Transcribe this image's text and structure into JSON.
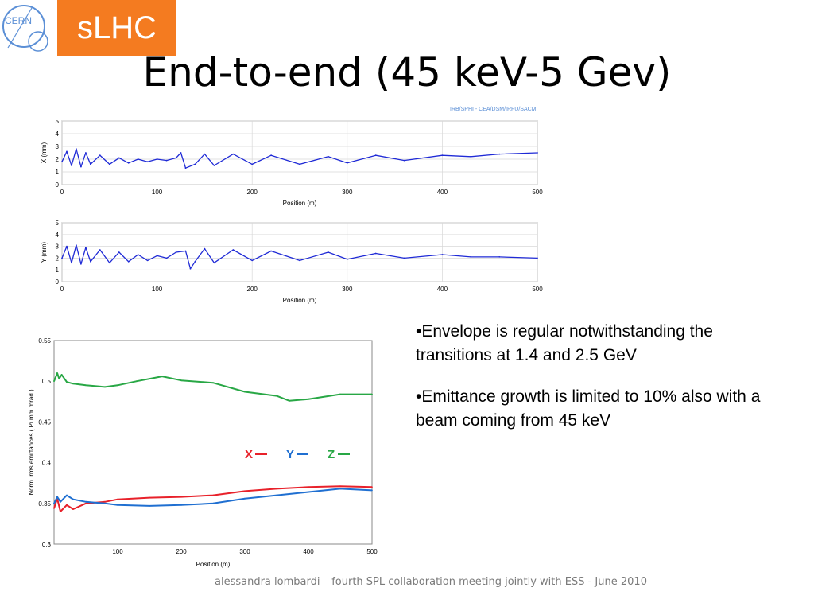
{
  "header": {
    "logo_text": "CERN",
    "project_badge": "sLHC",
    "title": "End-to-end (45 keV-5 Gev)",
    "credit": "IRB/SPHI - CEA/DSM/IRFU/SACM"
  },
  "bullets": [
    "•Envelope is regular notwithstanding the transitions at 1.4 and 2.5 GeV",
    "•Emittance growth is limited to 10% also with a beam coming from 45 keV"
  ],
  "footer": {
    "text": "alessandra lombardi – fourth SPL collaboration meeting jointly with ESS  - June 2010"
  },
  "colors": {
    "slhc_orange": "#f47b20",
    "envelope_blue": "#1f2ad6",
    "x_red": "#e8212a",
    "y_blue": "#1f6fd1",
    "z_green": "#28a745"
  },
  "chart_data": [
    {
      "type": "line",
      "xlabel": "Position (m)",
      "ylabel": "X (mm)",
      "xlim": [
        0,
        500
      ],
      "ylim": [
        0,
        5
      ],
      "xticks": [
        "0",
        "100",
        "200",
        "300",
        "400",
        "500"
      ],
      "yticks": [
        "0",
        "1",
        "2",
        "3",
        "4",
        "5"
      ],
      "grid": true,
      "series": [
        {
          "x": [
            0,
            5,
            10,
            15,
            20,
            25,
            30,
            40,
            50,
            60,
            70,
            80,
            90,
            100,
            110,
            120,
            125,
            130,
            140,
            150,
            160,
            180,
            200,
            220,
            250,
            280,
            300,
            330,
            360,
            400,
            430,
            460,
            500
          ],
          "y": [
            1.8,
            2.6,
            1.5,
            2.8,
            1.4,
            2.5,
            1.6,
            2.3,
            1.6,
            2.1,
            1.7,
            2.0,
            1.8,
            2.0,
            1.9,
            2.1,
            2.5,
            1.3,
            1.6,
            2.4,
            1.5,
            2.4,
            1.6,
            2.3,
            1.6,
            2.2,
            1.7,
            2.3,
            1.9,
            2.3,
            2.2,
            2.4,
            2.5
          ]
        }
      ]
    },
    {
      "type": "line",
      "xlabel": "Position (m)",
      "ylabel": "Y (mm)",
      "xlim": [
        0,
        500
      ],
      "ylim": [
        0,
        5
      ],
      "xticks": [
        "0",
        "100",
        "200",
        "300",
        "400",
        "500"
      ],
      "yticks": [
        "0",
        "1",
        "2",
        "3",
        "4",
        "5"
      ],
      "grid": true,
      "series": [
        {
          "x": [
            0,
            5,
            10,
            15,
            20,
            25,
            30,
            40,
            50,
            60,
            70,
            80,
            90,
            100,
            110,
            120,
            130,
            135,
            140,
            150,
            160,
            180,
            200,
            220,
            250,
            280,
            300,
            330,
            360,
            400,
            430,
            460,
            500
          ],
          "y": [
            2.0,
            3.0,
            1.6,
            3.1,
            1.5,
            2.9,
            1.7,
            2.7,
            1.6,
            2.5,
            1.7,
            2.3,
            1.8,
            2.2,
            2.0,
            2.5,
            2.6,
            1.1,
            1.7,
            2.8,
            1.6,
            2.7,
            1.8,
            2.6,
            1.8,
            2.5,
            1.9,
            2.4,
            2.0,
            2.3,
            2.1,
            2.1,
            2.0
          ]
        }
      ]
    },
    {
      "type": "line",
      "xlabel": "Position (m)",
      "ylabel": "Norm. rms emittances ( Pi mm mrad )",
      "xlim": [
        0,
        500
      ],
      "ylim": [
        0.3,
        0.55
      ],
      "xticks": [
        "100",
        "200",
        "300",
        "400",
        "500"
      ],
      "yticks": [
        "0.3",
        "0.35",
        "0.4",
        "0.45",
        "0.5",
        "0.55"
      ],
      "legend": "inside-right",
      "series": [
        {
          "name": "X",
          "color": "#e8212a",
          "x": [
            0,
            5,
            10,
            20,
            30,
            50,
            80,
            100,
            150,
            200,
            250,
            300,
            350,
            400,
            450,
            500
          ],
          "y": [
            0.344,
            0.356,
            0.34,
            0.348,
            0.343,
            0.35,
            0.352,
            0.355,
            0.357,
            0.358,
            0.36,
            0.365,
            0.368,
            0.37,
            0.371,
            0.37
          ]
        },
        {
          "name": "Y",
          "color": "#1f6fd1",
          "x": [
            0,
            5,
            10,
            20,
            30,
            50,
            80,
            100,
            150,
            200,
            250,
            300,
            350,
            400,
            450,
            500
          ],
          "y": [
            0.35,
            0.358,
            0.352,
            0.36,
            0.355,
            0.352,
            0.35,
            0.348,
            0.347,
            0.348,
            0.35,
            0.356,
            0.36,
            0.364,
            0.368,
            0.366
          ]
        },
        {
          "name": "Z",
          "color": "#28a745",
          "x": [
            0,
            5,
            8,
            12,
            20,
            30,
            50,
            80,
            100,
            130,
            170,
            200,
            250,
            300,
            350,
            370,
            400,
            450,
            500
          ],
          "y": [
            0.5,
            0.51,
            0.503,
            0.508,
            0.499,
            0.497,
            0.495,
            0.493,
            0.495,
            0.5,
            0.506,
            0.501,
            0.498,
            0.487,
            0.482,
            0.476,
            0.478,
            0.484,
            0.484
          ]
        }
      ]
    }
  ]
}
